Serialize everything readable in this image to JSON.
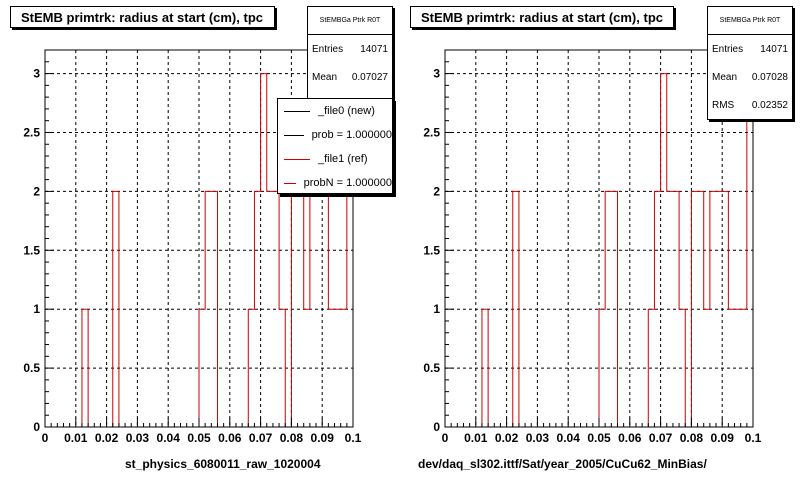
{
  "corner_note": "",
  "panels": [
    {
      "title": "StEMB primtrk: radius at start (cm), tpc",
      "xlabel": "st_physics_6080011_raw_1020004",
      "stats": {
        "title": "StEMBGa Ptrk R0T",
        "rows": [
          {
            "label": "Entries",
            "value": "14071"
          },
          {
            "label": "Mean",
            "value": "0.07027"
          }
        ]
      },
      "legend": {
        "entries": [
          {
            "label": "_file0 (new)",
            "color": "#000000"
          },
          {
            "label": "prob = 1.000000",
            "color": "#000000"
          },
          {
            "label": "_file1 (ref)",
            "color": "#cc0000"
          },
          {
            "label": "probN = 1.000000",
            "color": "#cc0000"
          }
        ]
      }
    },
    {
      "title": "StEMB primtrk: radius at start (cm), tpc",
      "xlabel": "dev/daq_sl302.ittf/Sat/year_2005/CuCu62_MinBias/",
      "stats": {
        "title": "StEMBGa Ptrk R0T",
        "rows": [
          {
            "label": "Entries",
            "value": "14071"
          },
          {
            "label": "Mean",
            "value": "0.07028"
          },
          {
            "label": "RMS",
            "value": "0.02352"
          }
        ]
      }
    }
  ],
  "chart_data": [
    {
      "type": "bar",
      "title": "StEMB primtrk: radius at start (cm), tpc",
      "xlabel": "st_physics_6080011_raw_1020004",
      "ylabel": "",
      "xlim": [
        0,
        0.1
      ],
      "ylim": [
        0,
        3.2
      ],
      "bin_width": 0.002,
      "xticks": [
        "0",
        "0.01",
        "0.02",
        "0.03",
        "0.04",
        "0.05",
        "0.06",
        "0.07",
        "0.08",
        "0.09",
        "0.1"
      ],
      "yticks": [
        "0",
        "0.5",
        "1",
        "1.5",
        "2",
        "2.5",
        "3"
      ],
      "grid": true,
      "line_color": "#cc0000",
      "bins": [
        {
          "x0": 0.012,
          "y": 1
        },
        {
          "x0": 0.022,
          "y": 2
        },
        {
          "x0": 0.05,
          "y": 1
        },
        {
          "x0": 0.052,
          "y": 2
        },
        {
          "x0": 0.054,
          "y": 2
        },
        {
          "x0": 0.066,
          "y": 1
        },
        {
          "x0": 0.068,
          "y": 2
        },
        {
          "x0": 0.07,
          "y": 3
        },
        {
          "x0": 0.072,
          "y": 2
        },
        {
          "x0": 0.074,
          "y": 2
        },
        {
          "x0": 0.076,
          "y": 1
        },
        {
          "x0": 0.08,
          "y": 2
        },
        {
          "x0": 0.082,
          "y": 2
        },
        {
          "x0": 0.084,
          "y": 1
        },
        {
          "x0": 0.086,
          "y": 2
        },
        {
          "x0": 0.088,
          "y": 2
        },
        {
          "x0": 0.09,
          "y": 2
        },
        {
          "x0": 0.092,
          "y": 1
        },
        {
          "x0": 0.094,
          "y": 1
        },
        {
          "x0": 0.096,
          "y": 1
        },
        {
          "x0": 0.098,
          "y": 3
        }
      ]
    },
    {
      "type": "bar",
      "title": "StEMB primtrk: radius at start (cm), tpc",
      "xlabel": "dev/daq_sl302.ittf/Sat/year_2005/CuCu62_MinBias/",
      "ylabel": "",
      "xlim": [
        0,
        0.1
      ],
      "ylim": [
        0,
        3.2
      ],
      "bin_width": 0.002,
      "xticks": [
        "0",
        "0.01",
        "0.02",
        "0.03",
        "0.04",
        "0.05",
        "0.06",
        "0.07",
        "0.08",
        "0.09",
        "0.1"
      ],
      "yticks": [
        "0",
        "0.5",
        "1",
        "1.5",
        "2",
        "2.5",
        "3"
      ],
      "grid": true,
      "line_color": "#cc0000",
      "bins": [
        {
          "x0": 0.012,
          "y": 1
        },
        {
          "x0": 0.022,
          "y": 2
        },
        {
          "x0": 0.05,
          "y": 1
        },
        {
          "x0": 0.052,
          "y": 2
        },
        {
          "x0": 0.054,
          "y": 2
        },
        {
          "x0": 0.066,
          "y": 1
        },
        {
          "x0": 0.068,
          "y": 2
        },
        {
          "x0": 0.07,
          "y": 3
        },
        {
          "x0": 0.072,
          "y": 2
        },
        {
          "x0": 0.074,
          "y": 2
        },
        {
          "x0": 0.076,
          "y": 1
        },
        {
          "x0": 0.08,
          "y": 2
        },
        {
          "x0": 0.082,
          "y": 2
        },
        {
          "x0": 0.084,
          "y": 1
        },
        {
          "x0": 0.086,
          "y": 2
        },
        {
          "x0": 0.088,
          "y": 2
        },
        {
          "x0": 0.09,
          "y": 2
        },
        {
          "x0": 0.092,
          "y": 1
        },
        {
          "x0": 0.094,
          "y": 1
        },
        {
          "x0": 0.096,
          "y": 1
        },
        {
          "x0": 0.098,
          "y": 3
        }
      ]
    }
  ]
}
